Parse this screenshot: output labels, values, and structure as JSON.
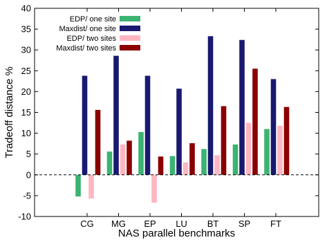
{
  "chart_data": {
    "type": "bar",
    "xlabel": "NAS parallel benchmarks",
    "ylabel": "Tradeoff distance %",
    "ylim": [
      -10,
      40
    ],
    "yticks": [
      "-10",
      "-5",
      "0",
      "5",
      "10",
      "15",
      "20",
      "25",
      "30",
      "35",
      "40"
    ],
    "grid": false,
    "zero_line": "dashed",
    "legend_position": "top-left",
    "categories": [
      "CG",
      "MG",
      "EP",
      "LU",
      "BT",
      "SP",
      "FT"
    ],
    "series": [
      {
        "name": "EDP/ one site",
        "color": "#3cb371",
        "values": [
          -5.2,
          5.6,
          10.3,
          4.5,
          6.2,
          7.3,
          11.0
        ]
      },
      {
        "name": "Maxdist/ one site",
        "color": "#191970",
        "values": [
          23.8,
          28.6,
          23.8,
          20.7,
          33.3,
          32.4,
          23.0
        ]
      },
      {
        "name": "EDP/ two sites",
        "color": "#ffb6c1",
        "values": [
          -5.7,
          7.3,
          -6.7,
          3.0,
          4.7,
          12.5,
          11.8
        ]
      },
      {
        "name": "Maxdist/ two sites",
        "color": "#8b0000",
        "values": [
          15.6,
          8.2,
          4.4,
          7.6,
          16.5,
          25.5,
          16.3
        ]
      }
    ]
  }
}
